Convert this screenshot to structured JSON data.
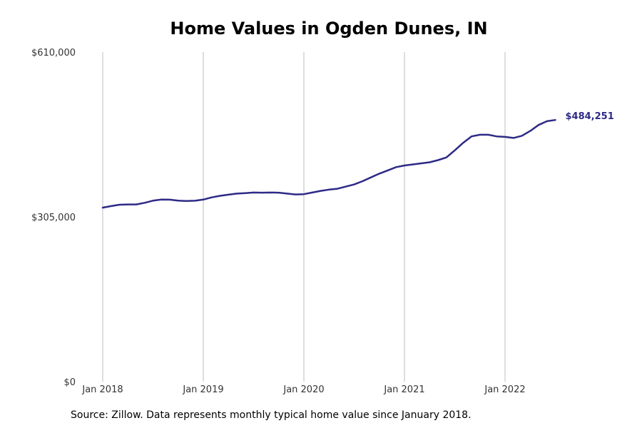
{
  "chart_data": {
    "type": "line",
    "title": "Home Values in Ogden Dunes, IN",
    "xlabel": "",
    "ylabel": "",
    "x_ticks": [
      "Jan 2018",
      "Jan 2019",
      "Jan 2020",
      "Jan 2021",
      "Jan 2022"
    ],
    "y_ticks": [
      "$0",
      "$305,000",
      "$610,000"
    ],
    "y_tick_values": [
      0,
      305000,
      610000
    ],
    "ylim": [
      0,
      610000
    ],
    "grid": "vertical",
    "series": [
      {
        "color": "#2e2a86",
        "end_label": "$484,251",
        "x": [
          "2018-01",
          "2018-02",
          "2018-03",
          "2018-04",
          "2018-05",
          "2018-06",
          "2018-07",
          "2018-08",
          "2018-09",
          "2018-10",
          "2018-11",
          "2018-12",
          "2019-01",
          "2019-02",
          "2019-03",
          "2019-04",
          "2019-05",
          "2019-06",
          "2019-07",
          "2019-08",
          "2019-09",
          "2019-10",
          "2019-11",
          "2019-12",
          "2020-01",
          "2020-02",
          "2020-03",
          "2020-04",
          "2020-05",
          "2020-06",
          "2020-07",
          "2020-08",
          "2020-09",
          "2020-10",
          "2020-11",
          "2020-12",
          "2021-01",
          "2021-02",
          "2021-03",
          "2021-04",
          "2021-05",
          "2021-06",
          "2021-07",
          "2021-08",
          "2021-09",
          "2021-10",
          "2021-11",
          "2021-12",
          "2022-01",
          "2022-02",
          "2022-03",
          "2022-04",
          "2022-05",
          "2022-06",
          "2022-07"
        ],
        "y": [
          322000,
          325000,
          327500,
          328000,
          328000,
          331000,
          335000,
          337000,
          336800,
          335000,
          334500,
          334800,
          337000,
          341000,
          344000,
          346000,
          348000,
          349000,
          350000,
          349800,
          350000,
          349800,
          348000,
          346500,
          347000,
          350000,
          353000,
          355500,
          357000,
          361000,
          365000,
          371000,
          378000,
          385000,
          391000,
          397000,
          400000,
          402000,
          404000,
          406000,
          410000,
          415000,
          428000,
          442000,
          454000,
          457000,
          457000,
          454000,
          453000,
          451000,
          455000,
          464000,
          475000,
          482000,
          484251
        ]
      }
    ]
  },
  "source_note": "Source: Zillow. Data represents monthly typical home value since January 2018."
}
